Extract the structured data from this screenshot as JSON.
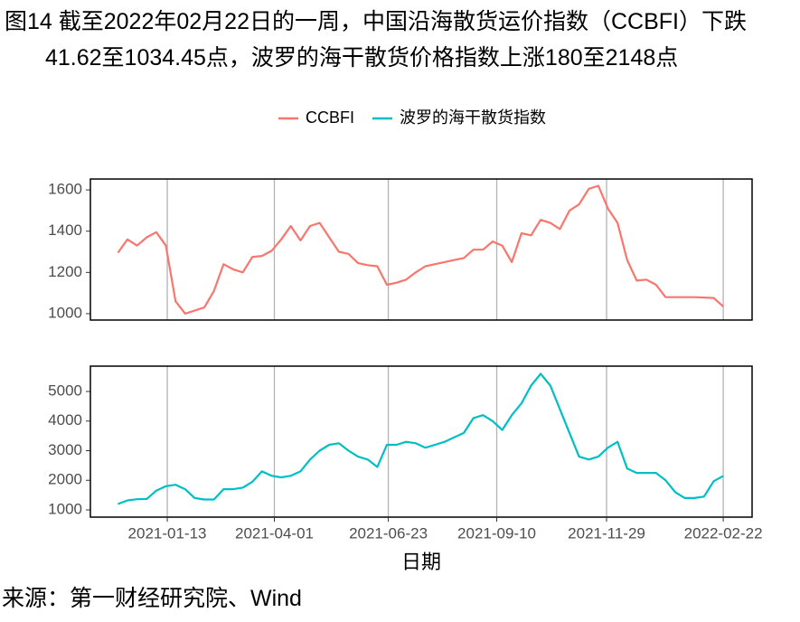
{
  "title": "图14  截至2022年02月22日的一周，中国沿海散货运价指数（CCBFI）下跌41.62至1034.45点，波罗的海干散货价格指数上涨180至2148点",
  "source": "来源：第一财经研究院、Wind",
  "chart_data": [
    {
      "type": "line",
      "x": [
        "2020-12-08",
        "2020-12-15",
        "2020-12-22",
        "2020-12-29",
        "2021-01-05",
        "2021-01-12",
        "2021-01-19",
        "2021-01-26",
        "2021-02-02",
        "2021-02-09",
        "2021-02-16",
        "2021-02-23",
        "2021-03-02",
        "2021-03-09",
        "2021-03-16",
        "2021-03-23",
        "2021-03-30",
        "2021-04-06",
        "2021-04-13",
        "2021-04-20",
        "2021-04-27",
        "2021-05-04",
        "2021-05-11",
        "2021-05-18",
        "2021-05-25",
        "2021-06-01",
        "2021-06-08",
        "2021-06-15",
        "2021-06-22",
        "2021-06-29",
        "2021-07-06",
        "2021-07-13",
        "2021-07-20",
        "2021-07-27",
        "2021-08-03",
        "2021-08-10",
        "2021-08-17",
        "2021-08-24",
        "2021-08-31",
        "2021-09-07",
        "2021-09-14",
        "2021-09-21",
        "2021-09-28",
        "2021-10-05",
        "2021-10-12",
        "2021-10-19",
        "2021-10-26",
        "2021-11-02",
        "2021-11-09",
        "2021-11-16",
        "2021-11-23",
        "2021-11-30",
        "2021-12-07",
        "2021-12-14",
        "2021-12-21",
        "2021-12-28",
        "2022-01-04",
        "2022-01-11",
        "2022-01-18",
        "2022-01-25",
        "2022-02-01",
        "2022-02-08",
        "2022-02-15",
        "2022-02-22"
      ],
      "series": [
        {
          "name": "CCBFI",
          "color": "#F8766D",
          "values": [
            1295,
            1360,
            1330,
            1370,
            1395,
            1330,
            1060,
            1000,
            1015,
            1030,
            1110,
            1240,
            1215,
            1200,
            1275,
            1280,
            1305,
            1360,
            1425,
            1355,
            1425,
            1440,
            1370,
            1300,
            1290,
            1245,
            1235,
            1230,
            1140,
            1150,
            1165,
            1200,
            1230,
            1240,
            1250,
            1260,
            1270,
            1310,
            1310,
            1350,
            1330,
            1250,
            1390,
            1380,
            1455,
            1440,
            1410,
            1500,
            1530,
            1605,
            1620,
            1510,
            1440,
            1260,
            1160,
            1165,
            1140,
            1080,
            1080,
            1080,
            1080,
            1078,
            1076.07,
            1034.45
          ]
        }
      ],
      "xlim": [
        "2020-11-18",
        "2022-03-15"
      ],
      "ylim": [
        969,
        1653
      ],
      "yticks": [
        1000,
        1200,
        1400,
        1600
      ],
      "grid": true
    },
    {
      "type": "line",
      "x": [
        "2020-12-08",
        "2020-12-15",
        "2020-12-22",
        "2020-12-29",
        "2021-01-05",
        "2021-01-12",
        "2021-01-19",
        "2021-01-26",
        "2021-02-02",
        "2021-02-09",
        "2021-02-16",
        "2021-02-23",
        "2021-03-02",
        "2021-03-09",
        "2021-03-16",
        "2021-03-23",
        "2021-03-30",
        "2021-04-06",
        "2021-04-13",
        "2021-04-20",
        "2021-04-27",
        "2021-05-04",
        "2021-05-11",
        "2021-05-18",
        "2021-05-25",
        "2021-06-01",
        "2021-06-08",
        "2021-06-15",
        "2021-06-22",
        "2021-06-29",
        "2021-07-06",
        "2021-07-13",
        "2021-07-20",
        "2021-07-27",
        "2021-08-03",
        "2021-08-10",
        "2021-08-17",
        "2021-08-24",
        "2021-08-31",
        "2021-09-07",
        "2021-09-14",
        "2021-09-21",
        "2021-09-28",
        "2021-10-05",
        "2021-10-12",
        "2021-10-19",
        "2021-10-26",
        "2021-11-02",
        "2021-11-09",
        "2021-11-16",
        "2021-11-23",
        "2021-11-30",
        "2021-12-07",
        "2021-12-14",
        "2021-12-21",
        "2021-12-28",
        "2022-01-04",
        "2022-01-11",
        "2022-01-18",
        "2022-01-25",
        "2022-02-01",
        "2022-02-08",
        "2022-02-15",
        "2022-02-22"
      ],
      "series": [
        {
          "name": "波罗的海干散货指数",
          "color": "#00BFC4",
          "values": [
            1200,
            1320,
            1360,
            1370,
            1650,
            1800,
            1850,
            1700,
            1400,
            1350,
            1350,
            1700,
            1700,
            1750,
            1950,
            2300,
            2150,
            2100,
            2150,
            2300,
            2700,
            3000,
            3200,
            3250,
            3000,
            2800,
            2700,
            2450,
            3200,
            3200,
            3300,
            3250,
            3100,
            3200,
            3300,
            3450,
            3600,
            4100,
            4200,
            4000,
            3700,
            4200,
            4600,
            5200,
            5600,
            5200,
            4400,
            3600,
            2800,
            2700,
            2800,
            3100,
            3300,
            2400,
            2250,
            2250,
            2250,
            2000,
            1600,
            1400,
            1400,
            1450,
            1968,
            2148
          ]
        }
      ],
      "xlim": [
        "2020-11-18",
        "2022-03-15"
      ],
      "ylim": [
        756,
        5855
      ],
      "yticks": [
        1000,
        2000,
        3000,
        4000,
        5000
      ],
      "xticks": [
        "2021-01-13",
        "2021-04-01",
        "2021-06-23",
        "2021-09-10",
        "2021-11-29",
        "2022-02-22"
      ],
      "xlabel": "日期",
      "grid": true
    }
  ]
}
